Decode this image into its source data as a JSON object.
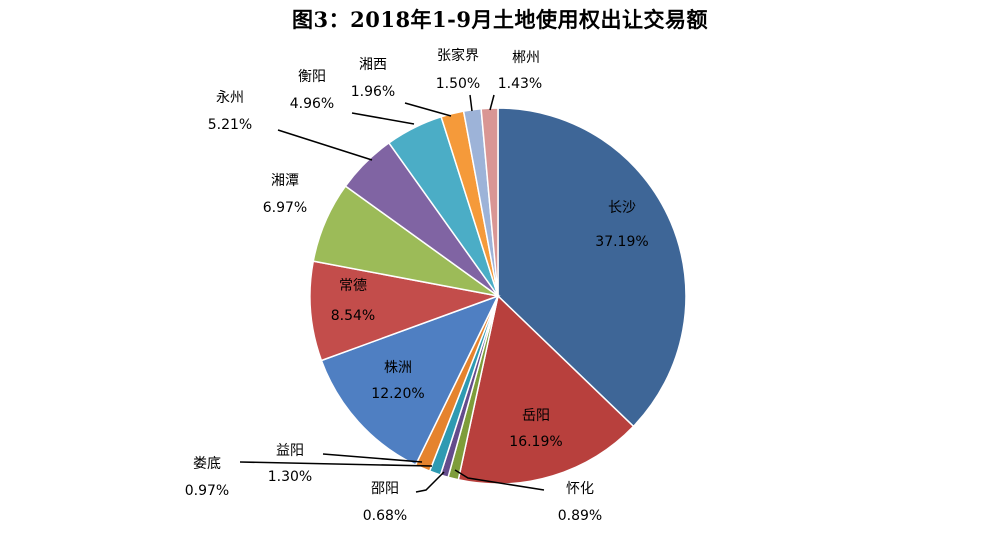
{
  "chart_data": {
    "type": "pie",
    "title": "图3：2018年1-9月土地使用权出让交易额",
    "slices": [
      {
        "name": "长沙",
        "pct_label": "37.19%",
        "value": 37.19,
        "color": "#3E6697"
      },
      {
        "name": "岳阳",
        "pct_label": "16.19%",
        "value": 16.19,
        "color": "#B8403D"
      },
      {
        "name": "怀化",
        "pct_label": "0.89%",
        "value": 0.89,
        "color": "#7E9D3A"
      },
      {
        "name": "邵阳",
        "pct_label": "0.68%",
        "value": 0.68,
        "color": "#644C8C"
      },
      {
        "name": "娄底",
        "pct_label": "0.97%",
        "value": 0.97,
        "color": "#2E9AB2"
      },
      {
        "name": "益阳",
        "pct_label": "1.30%",
        "value": 1.3,
        "color": "#E5832D"
      },
      {
        "name": "株洲",
        "pct_label": "12.20%",
        "value": 12.2,
        "color": "#4F7FC2"
      },
      {
        "name": "常德",
        "pct_label": "8.54%",
        "value": 8.54,
        "color": "#C34D4B"
      },
      {
        "name": "湘潭",
        "pct_label": "6.97%",
        "value": 6.97,
        "color": "#9CBB58"
      },
      {
        "name": "永州",
        "pct_label": "5.21%",
        "value": 5.21,
        "color": "#8064A3"
      },
      {
        "name": "衡阳",
        "pct_label": "4.96%",
        "value": 4.96,
        "color": "#4BADC6"
      },
      {
        "name": "湘西",
        "pct_label": "1.96%",
        "value": 1.96,
        "color": "#F59A3A"
      },
      {
        "name": "张家界",
        "pct_label": "1.50%",
        "value": 1.5,
        "color": "#9DB3D8"
      },
      {
        "name": "郴州",
        "pct_label": "1.43%",
        "value": 1.43,
        "color": "#D99694"
      }
    ]
  }
}
